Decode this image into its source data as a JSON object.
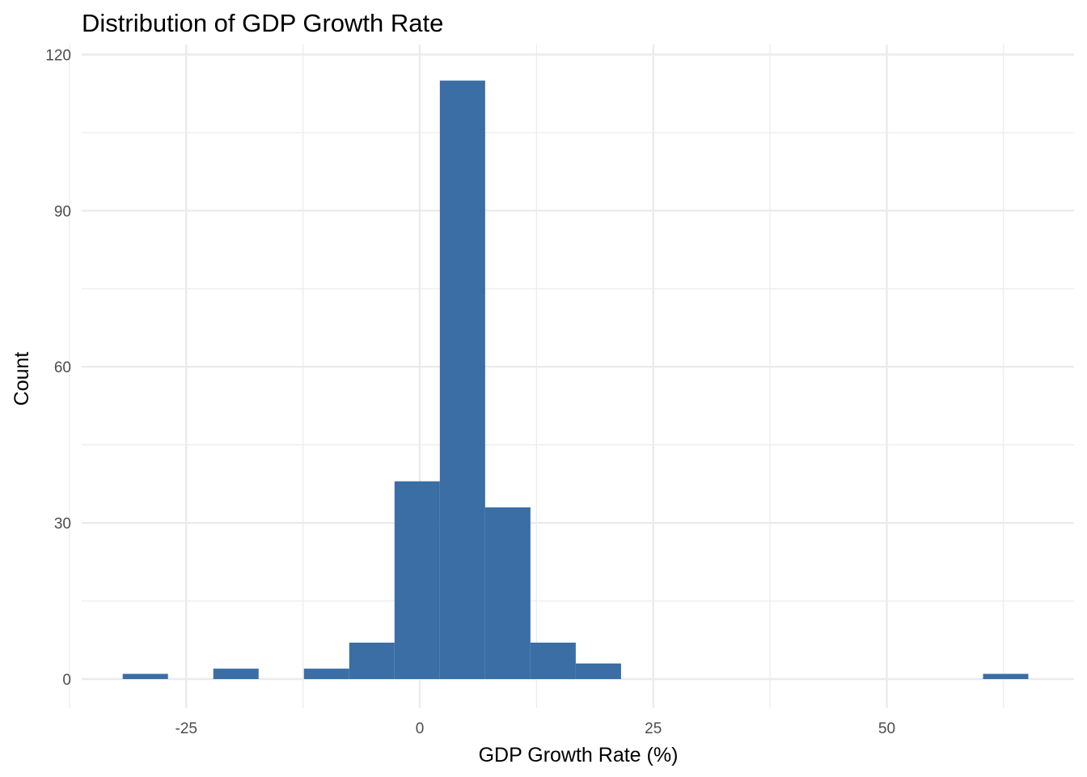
{
  "chart_data": {
    "type": "histogram",
    "title": "Distribution of GDP Growth Rate",
    "xlabel": "GDP Growth Rate (%)",
    "ylabel": "Count",
    "bin_width": 4.85,
    "bins": [
      {
        "start": -31.8,
        "end": -26.95,
        "count": 1
      },
      {
        "start": -26.95,
        "end": -22.1,
        "count": 0
      },
      {
        "start": -22.1,
        "end": -17.25,
        "count": 2
      },
      {
        "start": -17.25,
        "end": -12.4,
        "count": 0
      },
      {
        "start": -12.4,
        "end": -7.55,
        "count": 2
      },
      {
        "start": -7.55,
        "end": -2.7,
        "count": 7
      },
      {
        "start": -2.7,
        "end": 2.15,
        "count": 38
      },
      {
        "start": 2.15,
        "end": 7.0,
        "count": 115
      },
      {
        "start": 7.0,
        "end": 11.85,
        "count": 33
      },
      {
        "start": 11.85,
        "end": 16.7,
        "count": 7
      },
      {
        "start": 16.7,
        "end": 21.55,
        "count": 3
      },
      {
        "start": 60.3,
        "end": 65.15,
        "count": 1
      }
    ],
    "xlim": [
      -36,
      70
    ],
    "ylim": [
      -5,
      120
    ],
    "x_ticks": [
      -25,
      0,
      25,
      50
    ],
    "x_tick_labels": [
      "-25",
      "0",
      "25",
      "50"
    ],
    "x_minor_ticks": [
      -37.5,
      -12.5,
      12.5,
      37.5,
      62.5
    ],
    "y_ticks": [
      0,
      30,
      60,
      90,
      120
    ],
    "y_tick_labels": [
      "0",
      "30",
      "60",
      "90",
      "120"
    ],
    "y_minor_ticks": [
      15,
      45,
      75,
      105
    ],
    "bar_color": "#3A6EA5",
    "grid": true,
    "legend": "none"
  }
}
